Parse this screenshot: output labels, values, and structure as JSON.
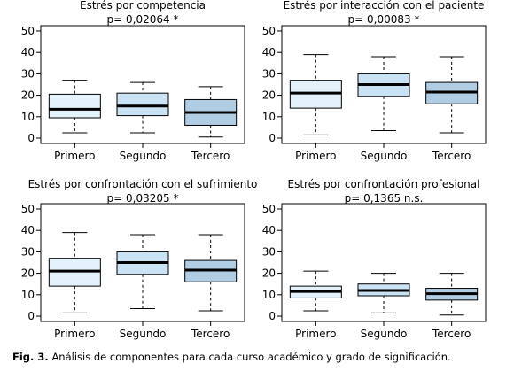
{
  "caption": {
    "label": "Fig. 3.",
    "text": "Análisis de componentes para cada curso académico y grado de significación."
  },
  "colors": {
    "box_fills": [
      "#e4f2fc",
      "#c9e2f4",
      "#b0cde4"
    ],
    "median": "#000000",
    "axis": "#000000"
  },
  "chart_data": [
    {
      "type": "boxplot",
      "title": "Estrés por competencia",
      "subtitle": "p= 0,02064 *",
      "categories": [
        "Primero",
        "Segundo",
        "Tercero"
      ],
      "ylim": [
        0,
        50
      ],
      "yticks": [
        0,
        10,
        20,
        30,
        40,
        50
      ],
      "grid": false,
      "boxes": [
        {
          "whisker_low": 2.5,
          "q1": 9.5,
          "median": 13.5,
          "q3": 20.5,
          "whisker_high": 27
        },
        {
          "whisker_low": 2.5,
          "q1": 10.5,
          "median": 15,
          "q3": 21,
          "whisker_high": 26
        },
        {
          "whisker_low": 0.5,
          "q1": 6,
          "median": 12,
          "q3": 18,
          "whisker_high": 24
        }
      ]
    },
    {
      "type": "boxplot",
      "title": "Estrés por interacción con el paciente",
      "subtitle": "p= 0,00083 *",
      "categories": [
        "Primero",
        "Segundo",
        "Tercero"
      ],
      "ylim": [
        0,
        50
      ],
      "yticks": [
        0,
        10,
        20,
        30,
        40,
        50
      ],
      "grid": false,
      "boxes": [
        {
          "whisker_low": 1.5,
          "q1": 14,
          "median": 21,
          "q3": 27,
          "whisker_high": 39
        },
        {
          "whisker_low": 3.5,
          "q1": 19.5,
          "median": 25,
          "q3": 30,
          "whisker_high": 38
        },
        {
          "whisker_low": 2.5,
          "q1": 16,
          "median": 21.5,
          "q3": 26,
          "whisker_high": 38
        }
      ]
    },
    {
      "type": "boxplot",
      "title": "Estrés por confrontación con el sufrimiento",
      "subtitle": "p= 0,03205 *",
      "categories": [
        "Primero",
        "Segundo",
        "Tercero"
      ],
      "ylim": [
        0,
        50
      ],
      "yticks": [
        0,
        10,
        20,
        30,
        40,
        50
      ],
      "grid": false,
      "boxes": [
        {
          "whisker_low": 1.5,
          "q1": 14,
          "median": 21,
          "q3": 27,
          "whisker_high": 39
        },
        {
          "whisker_low": 3.5,
          "q1": 19.5,
          "median": 25,
          "q3": 30,
          "whisker_high": 38
        },
        {
          "whisker_low": 2.5,
          "q1": 16,
          "median": 21.5,
          "q3": 26,
          "whisker_high": 38
        }
      ]
    },
    {
      "type": "boxplot",
      "title": "Estrés por confrontación profesional",
      "subtitle": "p= 0,1365 n.s.",
      "categories": [
        "Primero",
        "Segundo",
        "Tercero"
      ],
      "ylim": [
        0,
        50
      ],
      "yticks": [
        0,
        10,
        20,
        30,
        40,
        50
      ],
      "grid": false,
      "boxes": [
        {
          "whisker_low": 2.5,
          "q1": 8.5,
          "median": 11.5,
          "q3": 14,
          "whisker_high": 21
        },
        {
          "whisker_low": 1.5,
          "q1": 9.5,
          "median": 12,
          "q3": 15,
          "whisker_high": 20
        },
        {
          "whisker_low": 0.5,
          "q1": 7.5,
          "median": 10.5,
          "q3": 13,
          "whisker_high": 20
        }
      ]
    }
  ]
}
